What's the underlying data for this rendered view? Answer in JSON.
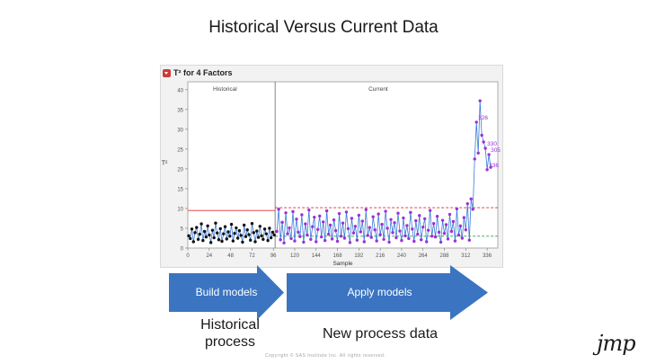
{
  "slide": {
    "title": "Historical Versus Current Data",
    "copyright": "Copyright © SAS Institute Inc. All rights reserved.",
    "logo_text": "jmp"
  },
  "panel": {
    "header": "T² for 4 Factors"
  },
  "flow": {
    "arrow1_label": "Build models",
    "arrow2_label": "Apply models",
    "phase1_line1": "Historical",
    "phase1_line2": "process",
    "phase2_label": "New process data",
    "arrow_color": "#3b74c1"
  },
  "chart_data": {
    "type": "line",
    "title": "",
    "xlabel": "Sample",
    "ylabel": "T²",
    "xlim": [
      0,
      348
    ],
    "ylim": [
      0,
      42
    ],
    "x_ticks": [
      0,
      24,
      48,
      72,
      96,
      120,
      144,
      168,
      192,
      216,
      240,
      264,
      288,
      312,
      336
    ],
    "y_ticks": [
      0,
      5,
      10,
      15,
      20,
      25,
      30,
      35,
      40
    ],
    "phase_boundary": 98,
    "phases": [
      {
        "name": "Historical",
        "x_start": 0,
        "x_end": 98
      },
      {
        "name": "Current",
        "x_start": 98,
        "x_end": 348
      }
    ],
    "limits": {
      "historical_ucl": 9.5,
      "current_ucl": 10.2,
      "current_center": 3.0
    },
    "colors": {
      "historical_points": "#111111",
      "current_points": "#9b30d9",
      "series_line": "#3b7bd6",
      "ucl": "#d93030",
      "center": "#2e9e4a"
    },
    "historical_values": [
      3.1,
      2.4,
      4.8,
      1.6,
      3.9,
      5.2,
      2.2,
      3.5,
      6.1,
      1.9,
      4.2,
      2.8,
      5.6,
      3.3,
      1.4,
      4.5,
      2.6,
      6.3,
      3.8,
      2.1,
      4.9,
      1.7,
      3.6,
      5.4,
      2.3,
      4.1,
      3.0,
      6.0,
      1.8,
      3.7,
      5.1,
      2.5,
      4.4,
      3.2,
      1.5,
      5.8,
      2.9,
      4.6,
      3.4,
      2.0,
      6.2,
      3.9,
      1.6,
      4.3,
      2.7,
      5.5,
      3.1,
      2.2,
      4.8,
      3.6,
      1.9,
      5.0,
      2.6,
      4.0,
      3.3
    ],
    "current_values": [
      4.2,
      9.8,
      2.1,
      6.5,
      1.3,
      8.9,
      3.6,
      5.1,
      2.4,
      9.2,
      1.8,
      7.3,
      4.0,
      2.9,
      8.4,
      1.5,
      6.1,
      3.3,
      9.6,
      2.2,
      5.4,
      7.8,
      1.6,
      4.7,
      8.1,
      2.8,
      6.6,
      1.9,
      9.4,
      3.5,
      5.8,
      2.3,
      7.1,
      4.4,
      1.7,
      8.7,
      3.0,
      6.3,
      2.5,
      9.1,
      4.9,
      1.4,
      7.5,
      3.8,
      5.5,
      2.0,
      8.3,
      4.1,
      6.8,
      1.6,
      9.7,
      3.2,
      5.2,
      2.7,
      7.9,
      4.6,
      1.8,
      8.6,
      3.4,
      6.0,
      2.2,
      9.3,
      5.0,
      1.5,
      7.2,
      3.9,
      6.4,
      2.6,
      8.8,
      4.3,
      1.9,
      7.6,
      3.1,
      5.7,
      2.4,
      9.0,
      4.8,
      1.7,
      6.9,
      3.5,
      8.2,
      2.1,
      5.3,
      7.4,
      1.6,
      4.5,
      9.5,
      3.0,
      6.2,
      2.8,
      8.0,
      4.0,
      1.5,
      7.0,
      3.7,
      5.9,
      2.3,
      8.5,
      4.2,
      6.7,
      1.8,
      9.9,
      3.3,
      5.6,
      2.5,
      7.7,
      4.6,
      11.2,
      2.0,
      12.4,
      9.8,
      22.5,
      31.8,
      24.0,
      37.2,
      28.5,
      26.8,
      25.2,
      19.8,
      23.6,
      20.4
    ],
    "current_x_start": 100,
    "current_x_step": 2,
    "point_labels": [
      {
        "text": "336",
        "x": 336
      },
      {
        "text": "305",
        "x": 338
      },
      {
        "text": "326",
        "x": 324
      },
      {
        "text": "330",
        "x": 334
      }
    ]
  }
}
